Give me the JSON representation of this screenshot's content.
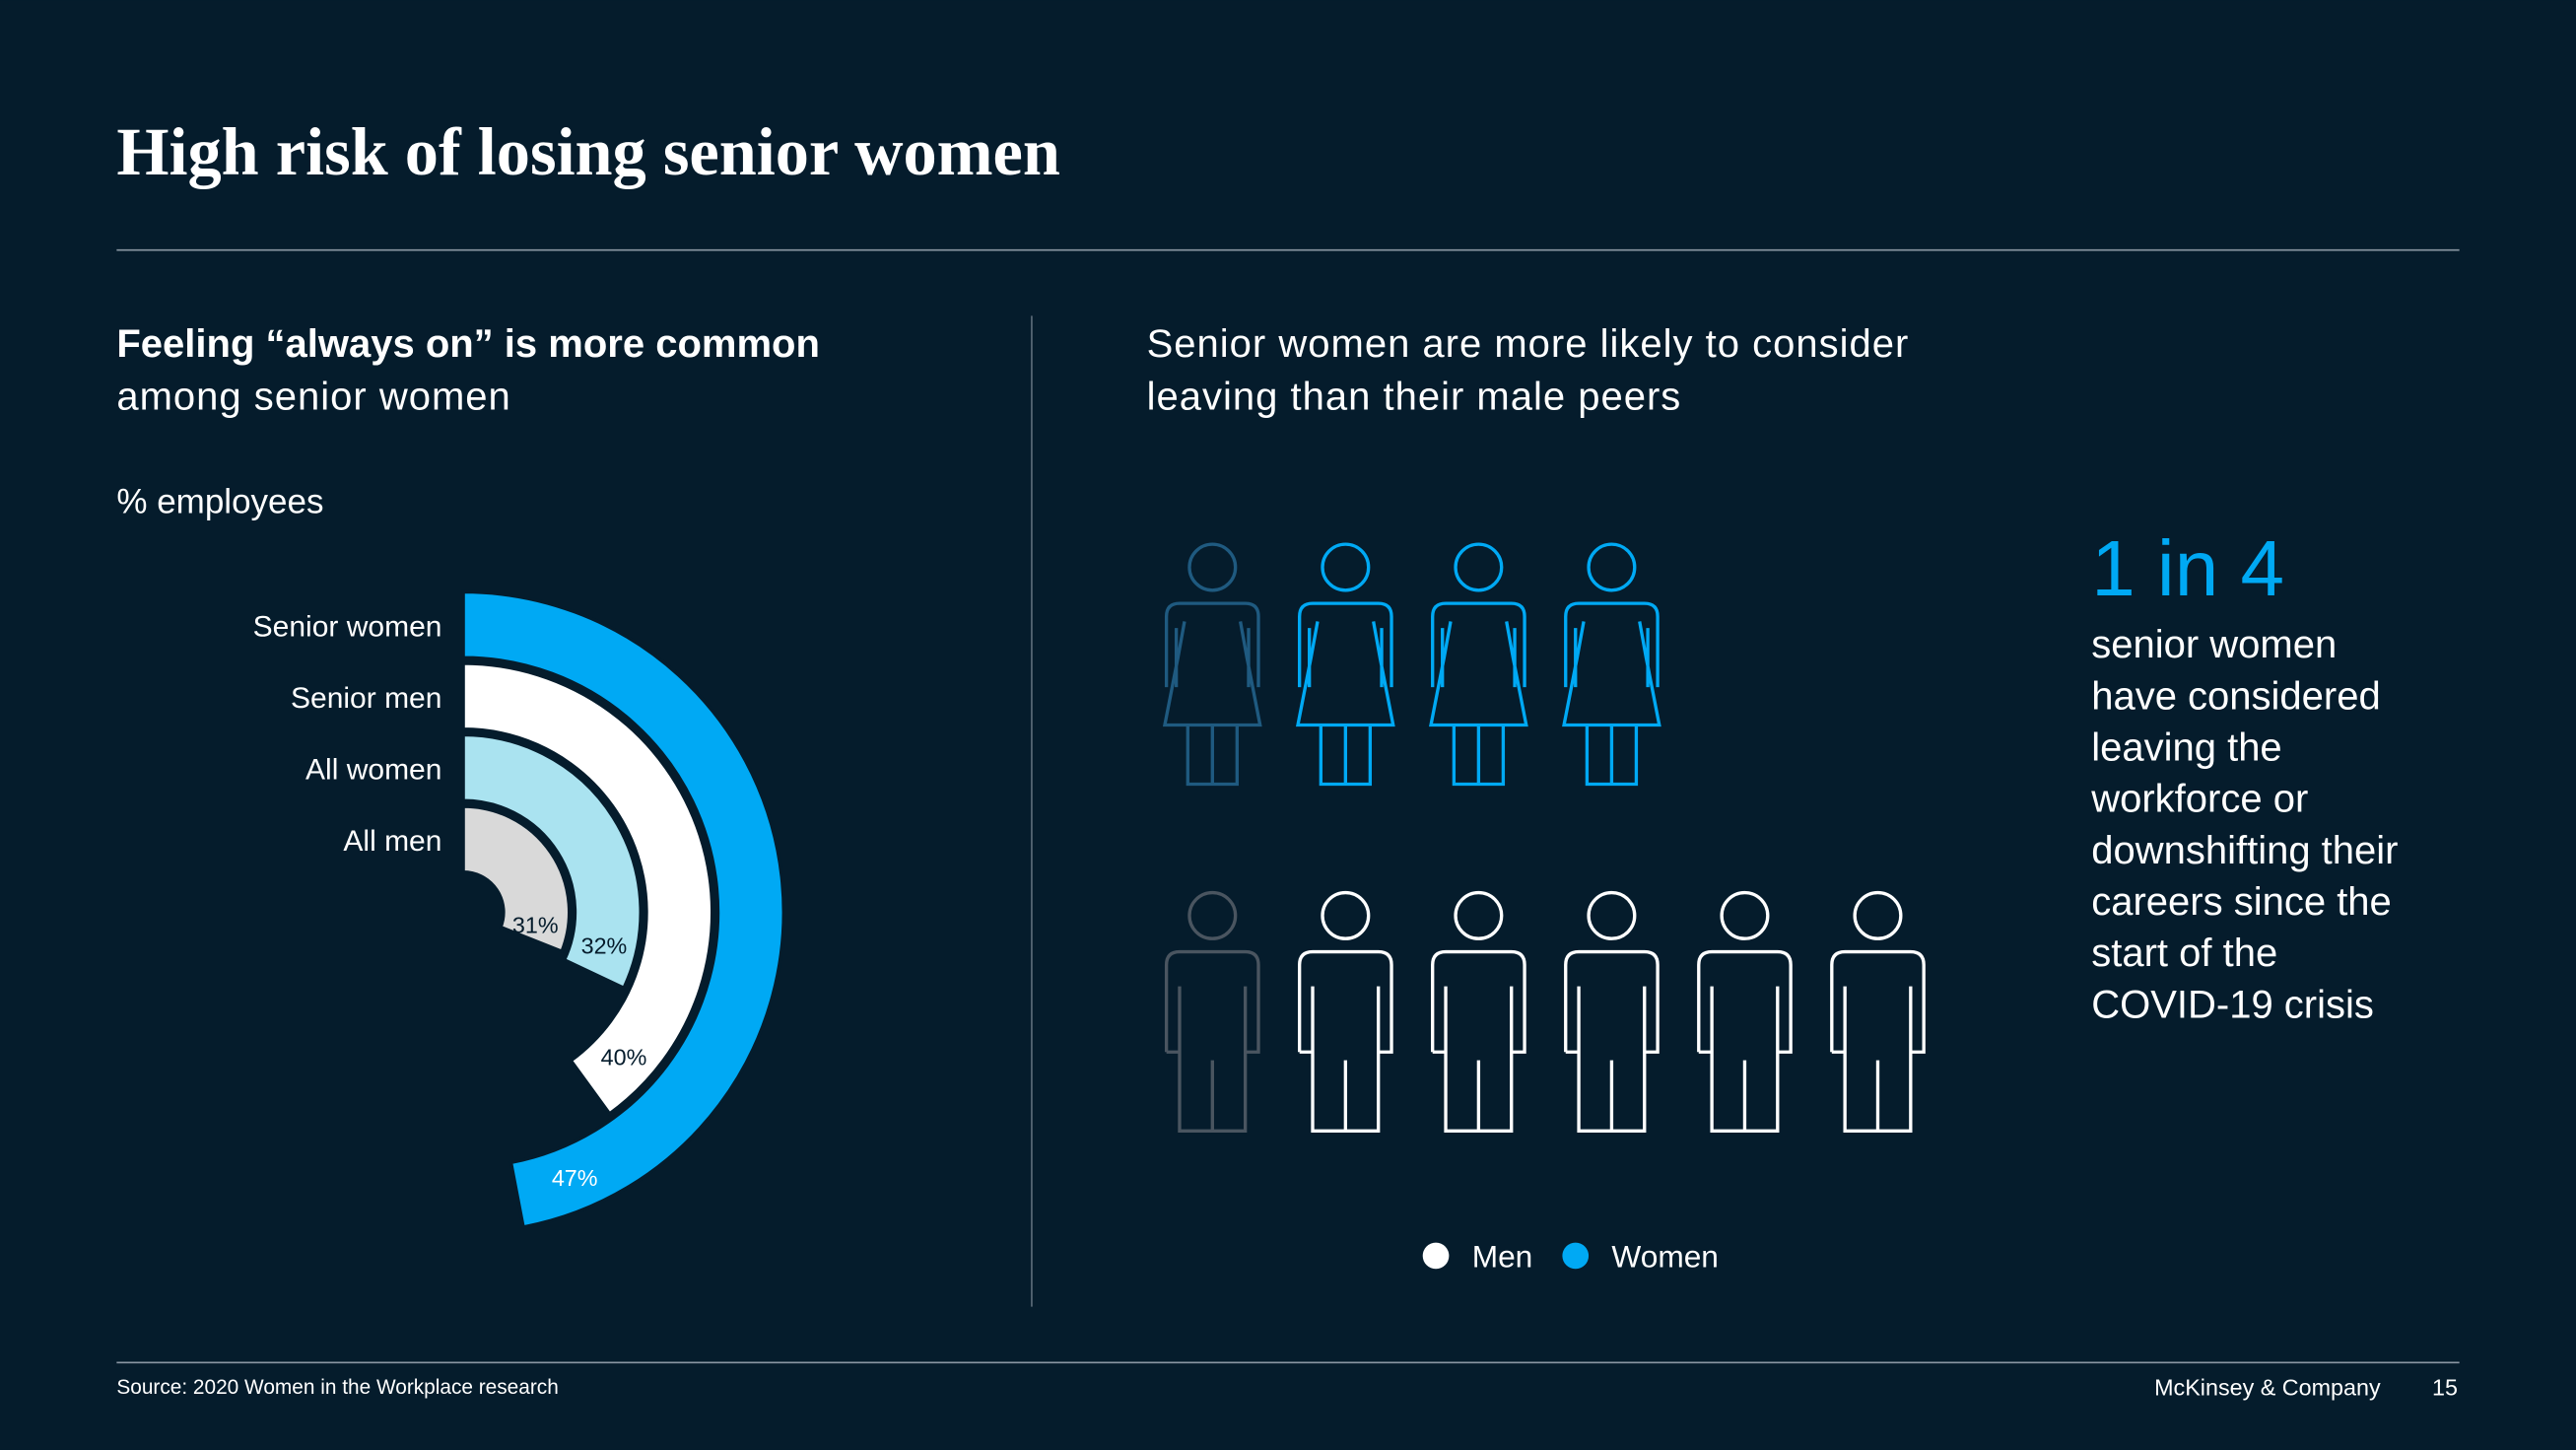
{
  "title": "High risk of losing senior women",
  "chart_data": [
    {
      "type": "radial-bar",
      "subtitle_bold": "Feeling “always on” is more common",
      "subtitle": "among senior women",
      "unit_label": "% employees",
      "categories": [
        "Senior women",
        "Senior men",
        "All women",
        "All men"
      ],
      "values": [
        47,
        40,
        32,
        31
      ],
      "value_labels": [
        "47%",
        "40%",
        "32%",
        "31%"
      ],
      "colors": [
        "#00a9f4",
        "#ffffff",
        "#aae3f0",
        "#d9d9d9"
      ],
      "ylim": [
        0,
        100
      ]
    },
    {
      "type": "pictogram",
      "title_lines": [
        "Senior women are more likely to consider",
        "leaving than their male peers"
      ],
      "series": [
        {
          "name": "Men",
          "color": "#ffffff",
          "highlight_color": "#4a5560",
          "count": 6,
          "highlighted": 1
        },
        {
          "name": "Women",
          "color": "#00a9f4",
          "highlight_color": "#1f5a80",
          "count": 4,
          "highlighted": 1
        }
      ]
    }
  ],
  "callout": {
    "headline": "1 in 4",
    "lines": [
      "senior women",
      "have considered",
      "leaving the",
      "workforce or",
      "downshifting their",
      "careers since the",
      "start of the",
      "COVID-19 crisis"
    ]
  },
  "footer": {
    "source": "Source: 2020 Women in the Workplace research",
    "company": "McKinsey & Company",
    "page": "15"
  }
}
